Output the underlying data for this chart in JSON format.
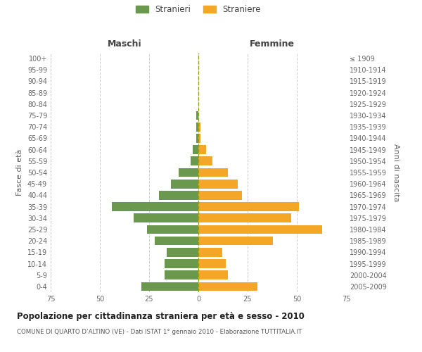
{
  "age_groups": [
    "100+",
    "95-99",
    "90-94",
    "85-89",
    "80-84",
    "75-79",
    "70-74",
    "65-69",
    "60-64",
    "55-59",
    "50-54",
    "45-49",
    "40-44",
    "35-39",
    "30-34",
    "25-29",
    "20-24",
    "15-19",
    "10-14",
    "5-9",
    "0-4"
  ],
  "birth_years": [
    "≤ 1909",
    "1910-1914",
    "1915-1919",
    "1920-1924",
    "1925-1929",
    "1930-1934",
    "1935-1939",
    "1940-1944",
    "1945-1949",
    "1950-1954",
    "1955-1959",
    "1960-1964",
    "1965-1969",
    "1970-1974",
    "1975-1979",
    "1980-1984",
    "1985-1989",
    "1990-1994",
    "1995-1999",
    "2000-2004",
    "2005-2009"
  ],
  "males": [
    0,
    0,
    0,
    0,
    0,
    1,
    1,
    1,
    3,
    4,
    10,
    14,
    20,
    44,
    33,
    26,
    22,
    16,
    17,
    17,
    29
  ],
  "females": [
    0,
    0,
    0,
    0,
    0,
    0,
    1,
    1,
    4,
    7,
    15,
    20,
    22,
    51,
    47,
    63,
    38,
    12,
    14,
    15,
    30
  ],
  "male_color": "#6a994e",
  "female_color": "#f4a726",
  "background_color": "#ffffff",
  "grid_color": "#cccccc",
  "title": "Popolazione per cittadinanza straniera per età e sesso - 2010",
  "subtitle": "COMUNE DI QUARTO D’ALTINO (VE) - Dati ISTAT 1° gennaio 2010 - Elaborazione TUTTITALIA.IT",
  "xlabel_left": "Maschi",
  "xlabel_right": "Femmine",
  "ylabel_left": "Fasce di età",
  "ylabel_right": "Anni di nascita",
  "legend_male": "Stranieri",
  "legend_female": "Straniere",
  "xlim": 75,
  "dashed_line_color": "#999900"
}
